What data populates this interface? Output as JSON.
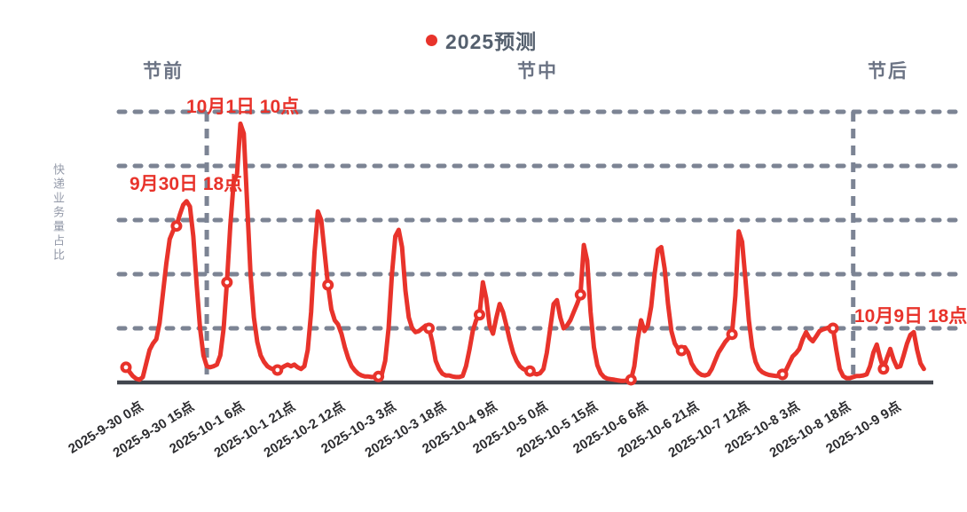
{
  "phases": {
    "pre": "节前",
    "mid": "节中",
    "post": "节后"
  },
  "chart_data": {
    "type": "line",
    "ylabel": "快递业务量占比",
    "ylim": [
      0,
      5
    ],
    "grid": "5 horizontal dashed gridlines, no y tick labels",
    "legend_position": "top-center",
    "series": [
      {
        "name": "2025预测",
        "color": "#e8332b",
        "start": "2025-9-30 0点",
        "interval_hours": 1,
        "marker_every_hours": 15,
        "values": [
          0.28,
          0.2,
          0.12,
          0.07,
          0.05,
          0.1,
          0.35,
          0.6,
          0.72,
          0.8,
          1.1,
          1.65,
          2.2,
          2.65,
          2.8,
          2.89,
          3.1,
          3.28,
          3.35,
          3.25,
          2.7,
          1.8,
          1.0,
          0.5,
          0.3,
          0.28,
          0.3,
          0.33,
          0.5,
          1.0,
          1.85,
          2.9,
          3.7,
          3.85,
          4.78,
          4.6,
          3.3,
          2.0,
          1.2,
          0.75,
          0.5,
          0.38,
          0.3,
          0.26,
          0.24,
          0.23,
          0.26,
          0.3,
          0.33,
          0.3,
          0.33,
          0.28,
          0.25,
          0.3,
          0.6,
          1.3,
          2.4,
          3.16,
          3.0,
          2.4,
          1.8,
          1.35,
          1.15,
          1.07,
          0.9,
          0.65,
          0.45,
          0.3,
          0.22,
          0.16,
          0.13,
          0.11,
          0.11,
          0.1,
          0.1,
          0.11,
          0.15,
          0.4,
          1.0,
          2.0,
          2.7,
          2.82,
          2.5,
          1.7,
          1.2,
          1.0,
          0.93,
          0.95,
          1.0,
          1.05,
          1.0,
          0.75,
          0.4,
          0.25,
          0.16,
          0.13,
          0.13,
          0.11,
          0.1,
          0.1,
          0.12,
          0.3,
          0.6,
          0.95,
          1.15,
          1.25,
          1.85,
          1.55,
          1.05,
          0.9,
          1.2,
          1.45,
          1.3,
          1.05,
          0.78,
          0.55,
          0.4,
          0.3,
          0.25,
          0.22,
          0.21,
          0.17,
          0.15,
          0.17,
          0.25,
          0.55,
          1.0,
          1.45,
          1.52,
          1.2,
          1.0,
          1.05,
          1.15,
          1.3,
          1.45,
          1.62,
          2.54,
          2.25,
          1.3,
          0.65,
          0.32,
          0.17,
          0.1,
          0.07,
          0.06,
          0.05,
          0.04,
          0.03,
          0.03,
          0.04,
          0.05,
          0.3,
          0.8,
          1.15,
          0.95,
          1.05,
          1.4,
          2.0,
          2.45,
          2.5,
          2.1,
          1.45,
          0.95,
          0.72,
          0.62,
          0.59,
          0.65,
          0.55,
          0.35,
          0.25,
          0.18,
          0.14,
          0.13,
          0.15,
          0.25,
          0.4,
          0.55,
          0.65,
          0.75,
          0.82,
          0.89,
          1.6,
          2.79,
          2.6,
          1.9,
          1.15,
          0.65,
          0.38,
          0.25,
          0.19,
          0.16,
          0.14,
          0.13,
          0.12,
          0.12,
          0.15,
          0.22,
          0.35,
          0.48,
          0.54,
          0.62,
          0.8,
          0.93,
          0.82,
          0.76,
          0.85,
          0.95,
          0.98,
          1.0,
          1.02,
          1.0,
          0.6,
          0.25,
          0.12,
          0.08,
          0.08,
          0.1,
          0.12,
          0.12,
          0.13,
          0.15,
          0.3,
          0.55,
          0.7,
          0.45,
          0.25,
          0.45,
          0.62,
          0.42,
          0.28,
          0.3,
          0.5,
          0.72,
          0.88,
          0.93,
          0.6,
          0.35,
          0.25
        ]
      }
    ],
    "x_tick_interval_hours": 15,
    "x_tick_labels": [
      "2025-9-30 0点",
      "2025-9-30 15点",
      "2025-10-1 6点",
      "2025-10-1 21点",
      "2025-10-2 12点",
      "2025-10-3 3点",
      "2025-10-3 18点",
      "2025-10-4 9点",
      "2025-10-5 0点",
      "2025-10-5 15点",
      "2025-10-6 6点",
      "2025-10-6 21点",
      "2025-10-7 12点",
      "2025-10-8 3点",
      "2025-10-8 18点",
      "2025-10-9 9点"
    ],
    "phase_dividers": [
      {
        "at": "2025-10-1 0点",
        "hour_index": 24
      },
      {
        "at": "2025-10-9 0点",
        "hour_index": 216
      }
    ],
    "annotations": [
      {
        "text": "10月1日 10点",
        "hour_index": 34,
        "value": 4.78
      },
      {
        "text": "9月30日 18点",
        "hour_index": 18,
        "value": 3.35
      },
      {
        "text": "10月9日 18点",
        "hour_index": 234,
        "value": 0.93
      }
    ],
    "colors": {
      "line": "#e8332b",
      "gridline": "#7c8494",
      "divider": "#7c8494",
      "axis": "#41464e",
      "annotation_text": "#e8332b",
      "phase_text": "#6b7384",
      "legend_text": "#55606e",
      "tick_text": "#2d2d30"
    }
  }
}
